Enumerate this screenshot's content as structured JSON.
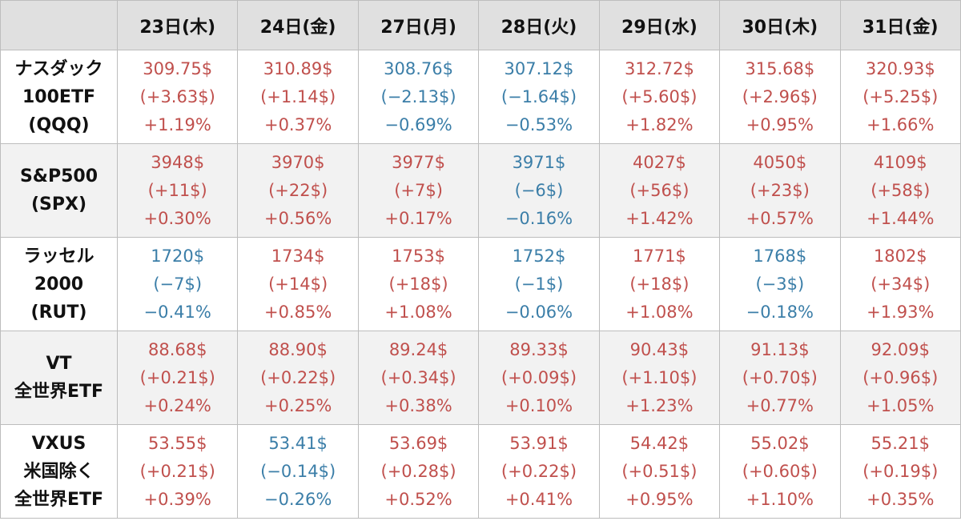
{
  "headers": [
    "",
    "23日(木)",
    "24日(金)",
    "27日(月)",
    "28日(火)",
    "29日(水)",
    "30日(木)",
    "31日(金)"
  ],
  "colors": {
    "up": "#c0504d",
    "down": "#3b7ea8"
  },
  "rows": [
    {
      "label": [
        "ナスダック",
        "100ETF",
        "(QQQ)"
      ],
      "cells": [
        {
          "price": "309.75$",
          "change": "(+3.63$)",
          "pct": "+1.19%",
          "dir": "up"
        },
        {
          "price": "310.89$",
          "change": "(+1.14$)",
          "pct": "+0.37%",
          "dir": "up"
        },
        {
          "price": "308.76$",
          "change": "(−2.13$)",
          "pct": "−0.69%",
          "dir": "down"
        },
        {
          "price": "307.12$",
          "change": "(−1.64$)",
          "pct": "−0.53%",
          "dir": "down"
        },
        {
          "price": "312.72$",
          "change": "(+5.60$)",
          "pct": "+1.82%",
          "dir": "up"
        },
        {
          "price": "315.68$",
          "change": "(+2.96$)",
          "pct": "+0.95%",
          "dir": "up"
        },
        {
          "price": "320.93$",
          "change": "(+5.25$)",
          "pct": "+1.66%",
          "dir": "up"
        }
      ]
    },
    {
      "label": [
        "S&P500",
        "(SPX)"
      ],
      "cells": [
        {
          "price": "3948$",
          "change": "(+11$)",
          "pct": "+0.30%",
          "dir": "up"
        },
        {
          "price": "3970$",
          "change": "(+22$)",
          "pct": "+0.56%",
          "dir": "up"
        },
        {
          "price": "3977$",
          "change": "(+7$)",
          "pct": "+0.17%",
          "dir": "up"
        },
        {
          "price": "3971$",
          "change": "(−6$)",
          "pct": "−0.16%",
          "dir": "down"
        },
        {
          "price": "4027$",
          "change": "(+56$)",
          "pct": "+1.42%",
          "dir": "up"
        },
        {
          "price": "4050$",
          "change": "(+23$)",
          "pct": "+0.57%",
          "dir": "up"
        },
        {
          "price": "4109$",
          "change": "(+58$)",
          "pct": "+1.44%",
          "dir": "up"
        }
      ]
    },
    {
      "label": [
        "ラッセル",
        "2000",
        "(RUT)"
      ],
      "cells": [
        {
          "price": "1720$",
          "change": "(−7$)",
          "pct": "−0.41%",
          "dir": "down"
        },
        {
          "price": "1734$",
          "change": "(+14$)",
          "pct": "+0.85%",
          "dir": "up"
        },
        {
          "price": "1753$",
          "change": "(+18$)",
          "pct": "+1.08%",
          "dir": "up"
        },
        {
          "price": "1752$",
          "change": "(−1$)",
          "pct": "−0.06%",
          "dir": "down"
        },
        {
          "price": "1771$",
          "change": "(+18$)",
          "pct": "+1.08%",
          "dir": "up"
        },
        {
          "price": "1768$",
          "change": "(−3$)",
          "pct": "−0.18%",
          "dir": "down"
        },
        {
          "price": "1802$",
          "change": "(+34$)",
          "pct": "+1.93%",
          "dir": "up"
        }
      ]
    },
    {
      "label": [
        "VT",
        "全世界ETF"
      ],
      "cells": [
        {
          "price": "88.68$",
          "change": "(+0.21$)",
          "pct": "+0.24%",
          "dir": "up"
        },
        {
          "price": "88.90$",
          "change": "(+0.22$)",
          "pct": "+0.25%",
          "dir": "up"
        },
        {
          "price": "89.24$",
          "change": "(+0.34$)",
          "pct": "+0.38%",
          "dir": "up"
        },
        {
          "price": "89.33$",
          "change": "(+0.09$)",
          "pct": "+0.10%",
          "dir": "up"
        },
        {
          "price": "90.43$",
          "change": "(+1.10$)",
          "pct": "+1.23%",
          "dir": "up"
        },
        {
          "price": "91.13$",
          "change": "(+0.70$)",
          "pct": "+0.77%",
          "dir": "up"
        },
        {
          "price": "92.09$",
          "change": "(+0.96$)",
          "pct": "+1.05%",
          "dir": "up"
        }
      ]
    },
    {
      "label": [
        "VXUS",
        "米国除く",
        "全世界ETF"
      ],
      "cells": [
        {
          "price": "53.55$",
          "change": "(+0.21$)",
          "pct": "+0.39%",
          "dir": "up"
        },
        {
          "price": "53.41$",
          "change": "(−0.14$)",
          "pct": "−0.26%",
          "dir": "down"
        },
        {
          "price": "53.69$",
          "change": "(+0.28$)",
          "pct": "+0.52%",
          "dir": "up"
        },
        {
          "price": "53.91$",
          "change": "(+0.22$)",
          "pct": "+0.41%",
          "dir": "up"
        },
        {
          "price": "54.42$",
          "change": "(+0.51$)",
          "pct": "+0.95%",
          "dir": "up"
        },
        {
          "price": "55.02$",
          "change": "(+0.60$)",
          "pct": "+1.10%",
          "dir": "up"
        },
        {
          "price": "55.21$",
          "change": "(+0.19$)",
          "pct": "+0.35%",
          "dir": "up"
        }
      ]
    }
  ]
}
